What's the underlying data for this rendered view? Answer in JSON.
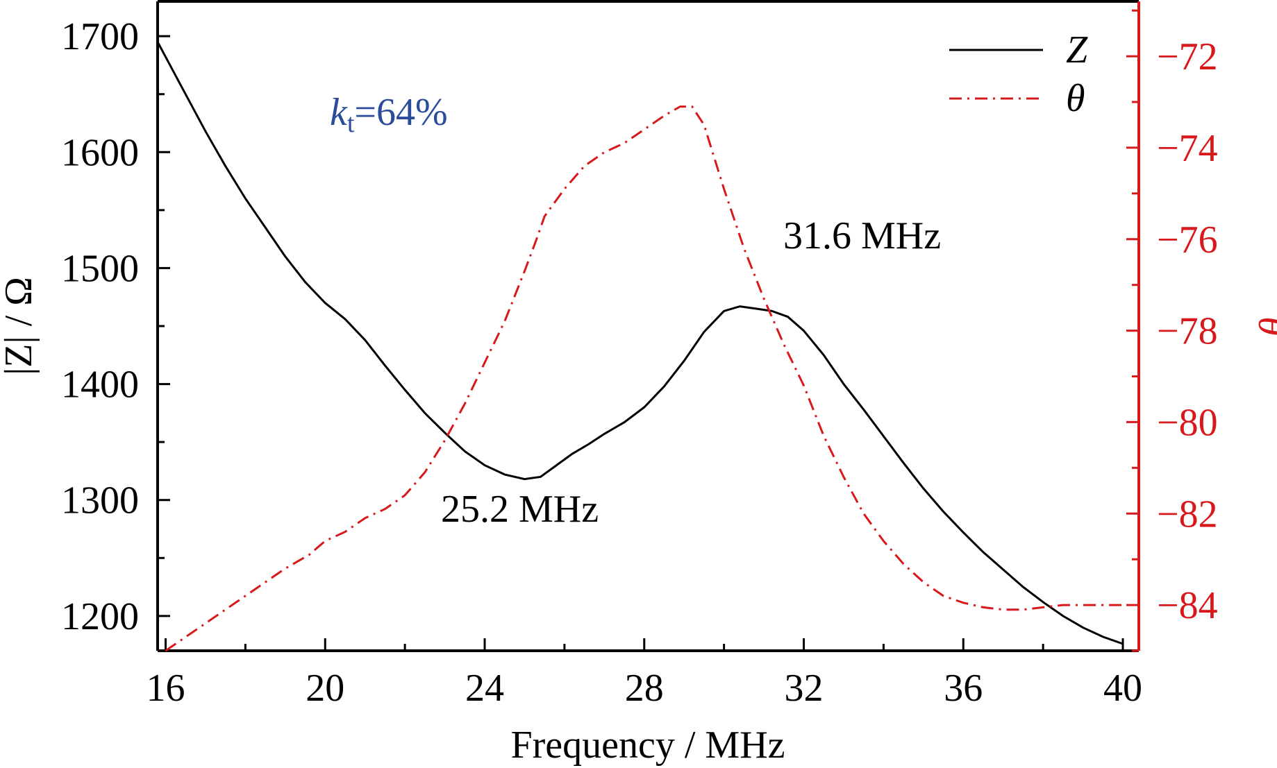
{
  "chart_data": {
    "type": "line",
    "xlabel": "Frequency / MHz",
    "ylabel_left": "|Z| / Ω",
    "ylabel_right": "θ",
    "xlim": [
      15.8,
      40.4
    ],
    "ylim_left": [
      1170,
      1730
    ],
    "ylim_right": [
      -85,
      -70.8
    ],
    "x_ticks": [
      16,
      20,
      24,
      28,
      32,
      36,
      40
    ],
    "x_tick_labels": [
      "16",
      "20",
      "24",
      "28",
      "32",
      "36",
      "40"
    ],
    "y_left_ticks": [
      1200,
      1300,
      1400,
      1500,
      1600,
      1700
    ],
    "y_left_tick_labels": [
      "1200",
      "1300",
      "1400",
      "1500",
      "1600",
      "1700"
    ],
    "y_right_ticks": [
      -84,
      -82,
      -80,
      -78,
      -76,
      -74,
      -72
    ],
    "y_right_tick_labels": [
      "−84",
      "−82",
      "−80",
      "−78",
      "−76",
      "−74",
      "−72"
    ],
    "colors": {
      "z": "#000000",
      "theta": "#d7191c",
      "annotation_kt": "#2b4c9a",
      "right_axis": "#d7191c"
    },
    "legend": {
      "placement": "top-right",
      "entries": [
        {
          "label": "Z",
          "style": "solid"
        },
        {
          "label": "θ",
          "style": "dash-dot"
        }
      ]
    },
    "annotations": {
      "kt_symbol": "k",
      "kt_subscript": "t",
      "kt_value": "=64%",
      "min_label": "25.2 MHz",
      "max_label": "31.6 MHz"
    },
    "series": [
      {
        "name": "Z",
        "axis": "left",
        "x": [
          15.8,
          16.5,
          17.0,
          17.5,
          18.0,
          18.5,
          19.0,
          19.5,
          20.0,
          20.5,
          21.0,
          21.5,
          22.0,
          22.5,
          23.0,
          23.5,
          24.0,
          24.5,
          25.0,
          25.4,
          25.8,
          26.2,
          26.6,
          27.0,
          27.5,
          28.0,
          28.5,
          29.0,
          29.5,
          30.0,
          30.4,
          30.8,
          31.2,
          31.6,
          32.0,
          32.5,
          33.0,
          33.5,
          34.0,
          34.5,
          35.0,
          35.5,
          36.0,
          36.5,
          37.0,
          37.5,
          38.0,
          38.5,
          39.0,
          39.5,
          40.0
        ],
        "values": [
          1695,
          1650,
          1618,
          1588,
          1560,
          1535,
          1510,
          1488,
          1470,
          1456,
          1438,
          1416,
          1395,
          1375,
          1358,
          1342,
          1330,
          1322,
          1318,
          1320,
          1330,
          1340,
          1348,
          1357,
          1367,
          1380,
          1398,
          1420,
          1445,
          1463,
          1467,
          1465,
          1463,
          1458,
          1446,
          1425,
          1400,
          1378,
          1355,
          1332,
          1310,
          1290,
          1272,
          1255,
          1240,
          1225,
          1212,
          1200,
          1190,
          1182,
          1176
        ]
      },
      {
        "name": "θ",
        "axis": "right",
        "x": [
          16.0,
          17.0,
          18.0,
          19.0,
          19.6,
          20.0,
          20.5,
          21.0,
          21.5,
          22.0,
          22.5,
          23.0,
          23.5,
          24.0,
          24.5,
          25.0,
          25.3,
          25.5,
          26.0,
          26.5,
          27.0,
          27.5,
          28.0,
          28.5,
          28.9,
          29.2,
          29.5,
          30.0,
          30.5,
          31.0,
          31.5,
          32.0,
          32.5,
          33.0,
          33.5,
          34.0,
          34.5,
          35.0,
          35.5,
          36.0,
          36.5,
          37.0,
          37.5,
          38.0,
          38.5,
          39.0,
          39.5,
          40.0
        ],
        "values": [
          -85.0,
          -84.4,
          -83.8,
          -83.2,
          -82.9,
          -82.6,
          -82.4,
          -82.1,
          -81.9,
          -81.6,
          -81.1,
          -80.4,
          -79.6,
          -78.7,
          -77.8,
          -76.7,
          -76.0,
          -75.5,
          -74.9,
          -74.4,
          -74.1,
          -73.9,
          -73.6,
          -73.3,
          -73.1,
          -73.1,
          -73.5,
          -74.9,
          -76.2,
          -77.3,
          -78.3,
          -79.2,
          -80.3,
          -81.2,
          -82.0,
          -82.6,
          -83.1,
          -83.5,
          -83.8,
          -83.95,
          -84.05,
          -84.1,
          -84.1,
          -84.05,
          -84.0,
          -84.0,
          -84.0,
          -84.0
        ]
      }
    ]
  }
}
